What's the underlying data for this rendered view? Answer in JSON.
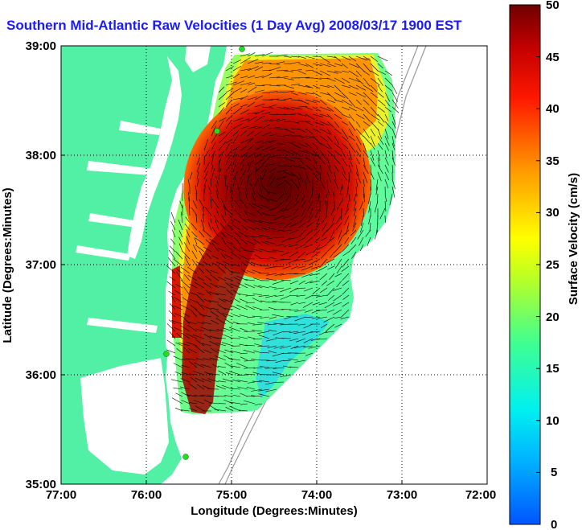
{
  "title": "Southern Mid-Atlantic Raw Velocities (1 Day Avg) 2008/03/17 1900 EST",
  "axes": {
    "xlabel": "Longitude (Degrees:Minutes)",
    "ylabel": "Latitude (Degrees:Minutes)",
    "xticks": [
      "77:00",
      "76:00",
      "75:00",
      "74:00",
      "73:00",
      "72:00"
    ],
    "yticks": [
      "39:00",
      "38:00",
      "37:00",
      "36:00",
      "35:00"
    ]
  },
  "colorbar": {
    "label": "Surface Velocity (cm/s)",
    "ticks": [
      "50",
      "45",
      "40",
      "35",
      "30",
      "25",
      "20",
      "15",
      "10",
      "5",
      "0"
    ]
  },
  "colors": {
    "land": "#52f0a4",
    "water": "#ffffff",
    "title": "#1a1aff",
    "station": "#22dd22"
  }
}
